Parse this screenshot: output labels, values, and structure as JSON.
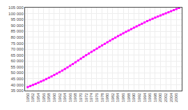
{
  "chart_data": {
    "type": "line",
    "x": [
      1950,
      1951,
      1952,
      1953,
      1954,
      1955,
      1956,
      1957,
      1958,
      1959,
      1960,
      1961,
      1962,
      1963,
      1964,
      1965,
      1966,
      1967,
      1968,
      1969,
      1970,
      1971,
      1972,
      1973,
      1974,
      1975,
      1976,
      1977,
      1978,
      1979,
      1980,
      1981,
      1982,
      1983,
      1984,
      1985,
      1986,
      1987,
      1988,
      1989,
      1990,
      1991,
      1992,
      1993,
      1994,
      1995,
      1996,
      1997,
      1998,
      1999,
      2000,
      2001,
      2002,
      2003,
      2004,
      2005,
      2006,
      2007
    ],
    "values": [
      38000,
      38900,
      39800,
      40700,
      41700,
      42700,
      43700,
      44800,
      45900,
      47000,
      48200,
      49400,
      50600,
      51900,
      53200,
      54600,
      56000,
      57400,
      58900,
      60400,
      61900,
      63400,
      64900,
      66300,
      67700,
      69000,
      70400,
      71800,
      73100,
      74500,
      75800,
      77100,
      78400,
      79700,
      81000,
      82200,
      83400,
      84600,
      85700,
      86900,
      88100,
      89200,
      90300,
      91400,
      92500,
      93600,
      94600,
      95600,
      96600,
      97500,
      98400,
      99300,
      100200,
      101100,
      102000,
      102900,
      103800,
      104700
    ],
    "color": "#ff00ff",
    "marker": "square",
    "xlim": [
      1949,
      2008
    ],
    "xticks": [
      1950,
      1952,
      1954,
      1956,
      1958,
      1960,
      1962,
      1964,
      1966,
      1968,
      1970,
      1972,
      1974,
      1976,
      1978,
      1980,
      1982,
      1984,
      1986,
      1988,
      1990,
      1992,
      1994,
      1996,
      1998,
      2000,
      2002,
      2004,
      2006
    ],
    "ylim": [
      35000,
      105000
    ],
    "yticks": [
      {
        "value": 35000,
        "label": "35 000"
      },
      {
        "value": 40000,
        "label": "40 000"
      },
      {
        "value": 45000,
        "label": "45 000"
      },
      {
        "value": 50000,
        "label": "50 000"
      },
      {
        "value": 55000,
        "label": "55 000"
      },
      {
        "value": 60000,
        "label": "60 000"
      },
      {
        "value": 65000,
        "label": "65 000"
      },
      {
        "value": 70000,
        "label": "70 000"
      },
      {
        "value": 75000,
        "label": "75 000"
      },
      {
        "value": 80000,
        "label": "80 000"
      },
      {
        "value": 85000,
        "label": "85 000"
      },
      {
        "value": 90000,
        "label": "90 000"
      },
      {
        "value": 95000,
        "label": "95 000"
      },
      {
        "value": 100000,
        "label": "100 000"
      },
      {
        "value": 105000,
        "label": "105 000"
      }
    ],
    "grid": true
  }
}
